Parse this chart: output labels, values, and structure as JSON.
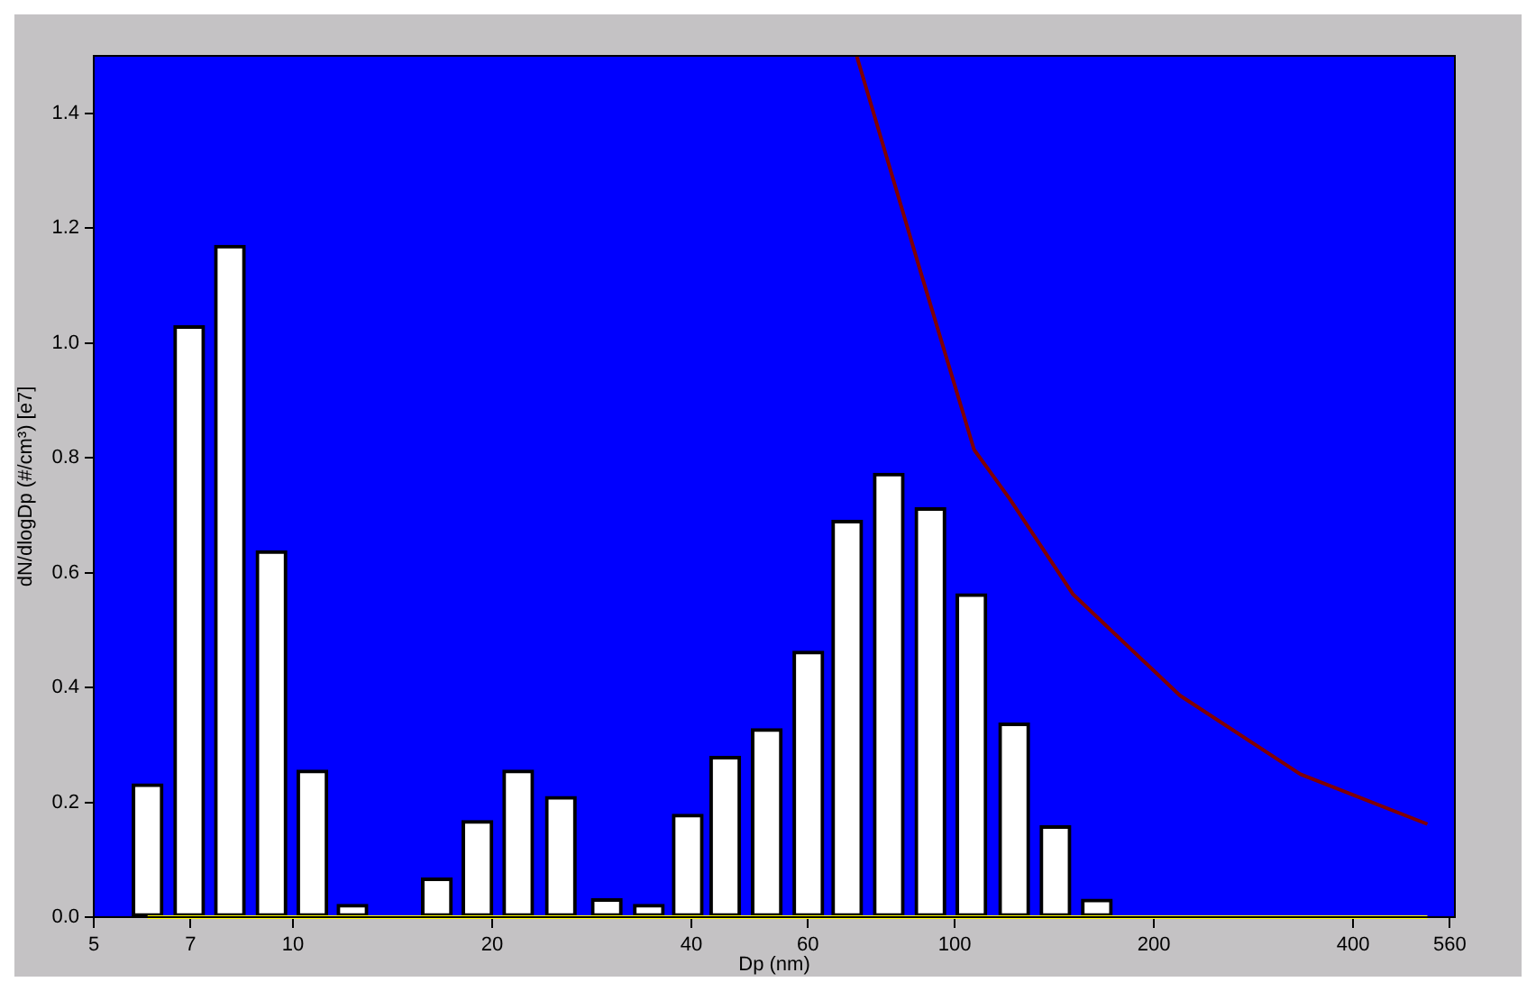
{
  "chart_data": {
    "type": "bar",
    "xlabel": "Dp (nm)",
    "ylabel": "dN/dlogDp (#/cm³) [e7]",
    "log": "x",
    "grid": false,
    "marker": "none",
    "line_style": "solid",
    "xlim": [
      5,
      570
    ],
    "xticks": [
      5,
      7,
      10,
      20,
      40,
      60,
      100,
      200,
      400,
      560
    ],
    "ylim": [
      0,
      1.5
    ],
    "yticks": [
      {
        "value": 0,
        "label": "0.0"
      },
      0.2,
      0.4,
      0.6,
      0.8,
      {
        "value": 1,
        "label": "1.0"
      },
      1.2,
      1.4
    ],
    "series": [
      {
        "color": "#ffffff",
        "x": [
          6.03,
          6.97,
          8.03,
          9.28,
          10.7,
          12.3,
          16.5,
          19.0,
          21.9,
          25.4,
          29.8,
          34.5,
          39.5,
          45.0,
          52.0,
          60.1,
          68.8,
          79.5,
          91.9,
          106,
          123,
          142,
          164
        ],
        "values": [
          0.232,
          1.03,
          1.17,
          0.638,
          0.256,
          0.022,
          0.068,
          0.168,
          0.256,
          0.21,
          0.032,
          0.022,
          0.179,
          0.28,
          0.328,
          0.463,
          0.691,
          0.773,
          0.713,
          0.563,
          0.338,
          0.159,
          0.031
        ]
      },
      {
        "type": "line",
        "color": "#800000",
        "x": [
          71.1,
          88.6,
          107,
          121,
          151,
          219,
          333,
          518
        ],
        "values": [
          1.5,
          1.128,
          0.814,
          0.729,
          0.562,
          0.386,
          0.249,
          0.162
        ]
      },
      {
        "type": "line",
        "color": "#ffff00",
        "x": [
          6.03,
          518
        ],
        "values": [
          0,
          0
        ]
      }
    ]
  }
}
